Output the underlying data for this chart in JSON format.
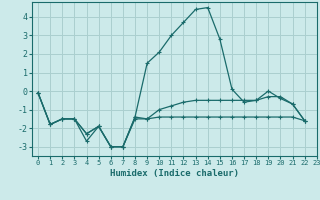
{
  "xlabel": "Humidex (Indice chaleur)",
  "bg_color": "#cceaea",
  "grid_color": "#aacfcf",
  "line_color": "#1a6b6b",
  "xlim": [
    -0.5,
    23
  ],
  "ylim": [
    -3.5,
    4.8
  ],
  "yticks": [
    -3,
    -2,
    -1,
    0,
    1,
    2,
    3,
    4
  ],
  "xticks": [
    0,
    1,
    2,
    3,
    4,
    5,
    6,
    7,
    8,
    9,
    10,
    11,
    12,
    13,
    14,
    15,
    16,
    17,
    18,
    19,
    20,
    21,
    22,
    23
  ],
  "series": [
    {
      "x": [
        0,
        1,
        2,
        3,
        4,
        5,
        6,
        7,
        8,
        9,
        10,
        11,
        12,
        13,
        14,
        15,
        16,
        17,
        18,
        19,
        20,
        21,
        22
      ],
      "y": [
        -0.1,
        -1.8,
        -1.5,
        -1.5,
        -2.7,
        -1.9,
        -3.0,
        -3.0,
        -1.5,
        -1.5,
        -1.4,
        -1.4,
        -1.4,
        -1.4,
        -1.4,
        -1.4,
        -1.4,
        -1.4,
        -1.4,
        -1.4,
        -1.4,
        -1.4,
        -1.6
      ]
    },
    {
      "x": [
        0,
        1,
        2,
        3,
        4,
        5,
        6,
        7,
        8,
        9,
        10,
        11,
        12,
        13,
        14,
        15,
        16,
        17,
        18,
        19,
        20,
        21,
        22
      ],
      "y": [
        -0.1,
        -1.8,
        -1.5,
        -1.5,
        -2.3,
        -1.9,
        -3.0,
        -3.0,
        -1.4,
        1.5,
        2.1,
        3.0,
        3.7,
        4.4,
        4.5,
        2.8,
        0.1,
        -0.6,
        -0.5,
        0.0,
        -0.4,
        -0.7,
        -1.6
      ]
    },
    {
      "x": [
        0,
        1,
        2,
        3,
        4,
        5,
        6,
        7,
        8,
        9,
        10,
        11,
        12,
        13,
        14,
        15,
        16,
        17,
        18,
        19,
        20,
        21,
        22
      ],
      "y": [
        -0.1,
        -1.8,
        -1.5,
        -1.5,
        -2.3,
        -1.9,
        -3.0,
        -3.0,
        -1.4,
        -1.5,
        -1.0,
        -0.8,
        -0.6,
        -0.5,
        -0.5,
        -0.5,
        -0.5,
        -0.5,
        -0.5,
        -0.3,
        -0.3,
        -0.7,
        -1.6
      ]
    }
  ]
}
